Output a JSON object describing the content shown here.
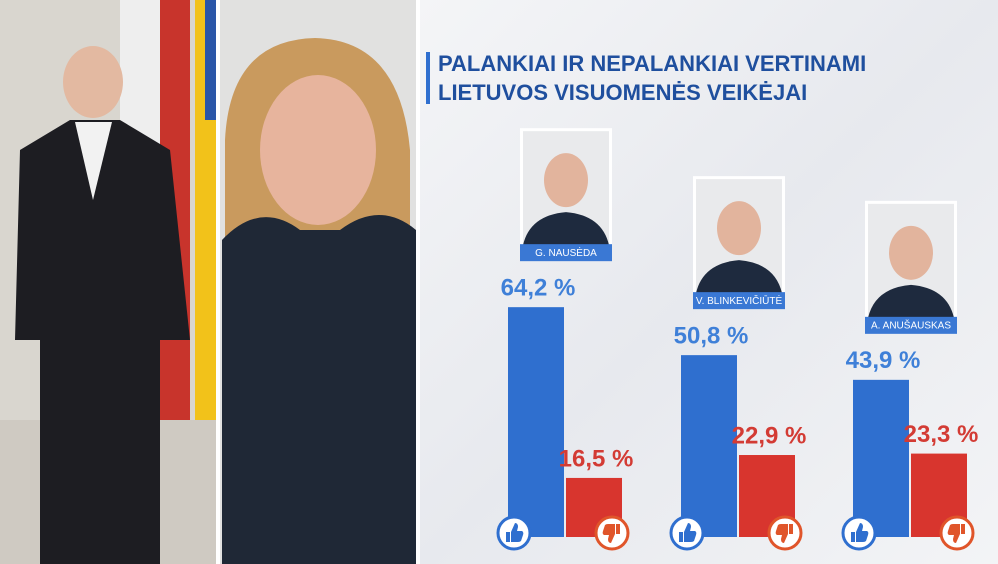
{
  "chart_data": {
    "type": "bar",
    "title": [
      "PALANKIAI IR NEPALANKIAI VERTINAMI",
      "LIETUVOS VISUOMENĖS VEIKĖJAI"
    ],
    "categories": [
      "G. NAUSĖDA",
      "V. BLINKEVIČIŪTĖ",
      "A. ANUŠAUSKAS"
    ],
    "series": [
      {
        "color": "#2f6fcf",
        "values": [
          64.2,
          50.8,
          43.9
        ],
        "value_labels": [
          "64,2 %",
          "50,8 %",
          "43,9 %"
        ]
      },
      {
        "color": "#d8352e",
        "values": [
          16.5,
          22.9,
          23.3
        ],
        "value_labels": [
          "16,5 %",
          "22,9 %",
          "23,3 %"
        ]
      }
    ]
  }
}
